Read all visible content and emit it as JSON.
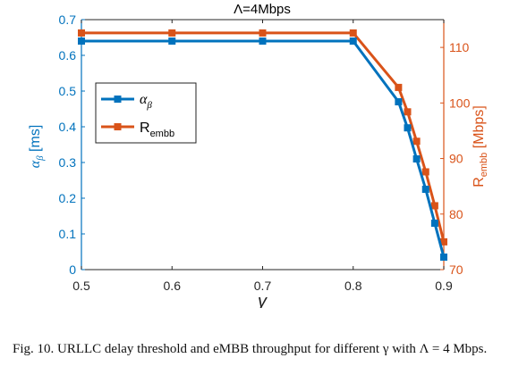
{
  "chart_data": {
    "type": "line",
    "title": "Λ=4Mbps",
    "xlabel": "γ",
    "ylabel_left": {
      "main": "α",
      "sub": "β",
      "unit": "[ms]"
    },
    "ylabel_right": {
      "main": "R",
      "sub": "embb",
      "unit": "[Mbps]"
    },
    "xlim": [
      0.5,
      0.9
    ],
    "ylim_left": [
      0,
      0.7
    ],
    "ylim_right": [
      70,
      115
    ],
    "x_ticks": [
      "0.5",
      "0.6",
      "0.7",
      "0.8",
      "0.9"
    ],
    "y_ticks_left": [
      "0",
      "0.1",
      "0.2",
      "0.3",
      "0.4",
      "0.5",
      "0.6",
      "0.7"
    ],
    "y_ticks_right": [
      "70",
      "80",
      "90",
      "100",
      "110"
    ],
    "grid": false,
    "legend_position": "middle-left",
    "series": [
      {
        "name": "α",
        "name_sub": "β",
        "axis": "left",
        "color": "#0072BD",
        "x": [
          0.5,
          0.6,
          0.7,
          0.8,
          0.85,
          0.86,
          0.87,
          0.88,
          0.89,
          0.9
        ],
        "y": [
          0.64,
          0.64,
          0.64,
          0.64,
          0.47,
          0.397,
          0.31,
          0.225,
          0.13,
          0.035
        ]
      },
      {
        "name": "R",
        "name_sub": "embb",
        "axis": "right",
        "color": "#D95319",
        "x": [
          0.5,
          0.6,
          0.7,
          0.8,
          0.85,
          0.86,
          0.87,
          0.88,
          0.89,
          0.9
        ],
        "y": [
          112.6,
          112.6,
          112.6,
          112.6,
          102.8,
          98.4,
          93.1,
          87.6,
          81.5,
          75.0
        ]
      }
    ]
  },
  "caption": "Fig. 10.  URLLC delay threshold and eMBB throughput for different γ with Λ = 4 Mbps."
}
